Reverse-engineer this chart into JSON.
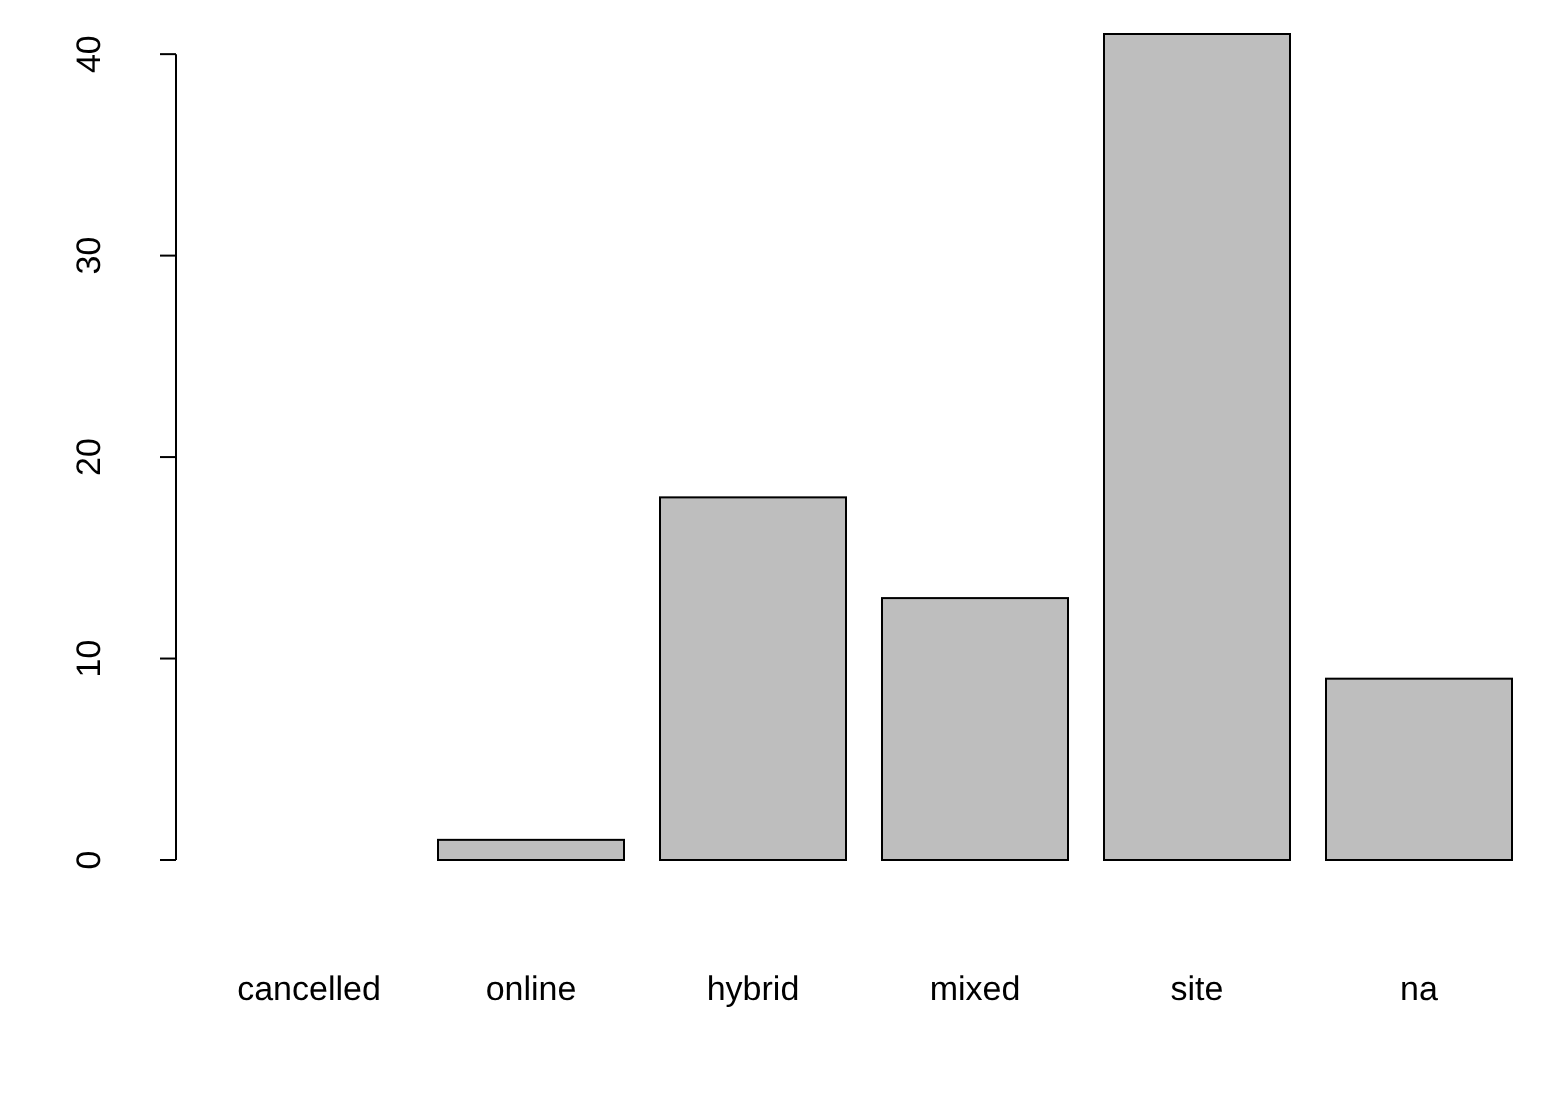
{
  "chart_data": {
    "type": "bar",
    "categories": [
      "cancelled",
      "online",
      "hybrid",
      "mixed",
      "site",
      "na"
    ],
    "values": [
      0,
      1,
      18,
      13,
      41,
      9
    ],
    "color": "#bebebe",
    "ylim": [
      0,
      41
    ],
    "yticks": [
      0,
      10,
      20,
      30,
      40
    ],
    "grid": false
  }
}
